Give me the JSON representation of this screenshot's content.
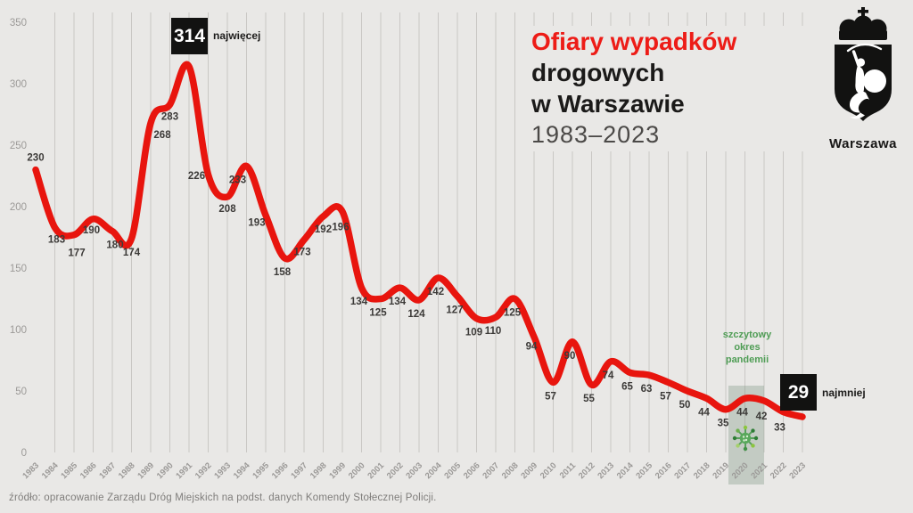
{
  "title": {
    "line1": "Ofiary wypadków",
    "line2": "drogowych",
    "line3": "w Warszawie",
    "years": "1983–2023"
  },
  "logo": {
    "caption": "Warszawa",
    "icon": "warsaw-mermaid-crest"
  },
  "annotations": {
    "max": {
      "value": "314",
      "label": "najwięcej"
    },
    "min": {
      "value": "29",
      "label": "najmniej"
    },
    "pandemic": {
      "lines": [
        "szczytowy",
        "okres",
        "pandemii"
      ],
      "icon": "virus-icon",
      "band_years": [
        2020,
        2021
      ]
    }
  },
  "source": "źródło:  opracowanie Zarządu Dróg Miejskich na podst. danych Komendy Stołecznej Policji.",
  "colors": {
    "background": "#e9e8e6",
    "grid": "#c9c7c4",
    "line_red": "#e8150e",
    "accent_red": "#ed1c17",
    "axis_text": "#9c9a98",
    "data_label": "#3c3a38",
    "black": "#121211",
    "green": "#4f9d55",
    "band": "rgba(125,150,128,0.35)",
    "virus_dark": "#2e7d36",
    "virus_light": "#8cc63f"
  },
  "chart_data": {
    "type": "line",
    "title": "Ofiary wypadków drogowych w Warszawie 1983–2023",
    "xlabel": "",
    "ylabel": "",
    "x": [
      1983,
      1984,
      1985,
      1986,
      1987,
      1988,
      1989,
      1990,
      1991,
      1992,
      1993,
      1994,
      1995,
      1996,
      1997,
      1998,
      1999,
      2000,
      2001,
      2002,
      2003,
      2004,
      2005,
      2006,
      2007,
      2008,
      2009,
      2010,
      2011,
      2012,
      2013,
      2014,
      2015,
      2016,
      2017,
      2018,
      2019,
      2020,
      2021,
      2022,
      2023
    ],
    "values": [
      230,
      183,
      177,
      190,
      180,
      174,
      268,
      283,
      314,
      226,
      208,
      233,
      193,
      158,
      173,
      192,
      196,
      134,
      125,
      134,
      124,
      142,
      127,
      109,
      110,
      125,
      94,
      57,
      90,
      55,
      74,
      65,
      63,
      57,
      50,
      44,
      35,
      44,
      42,
      33,
      29
    ],
    "ylim": [
      0,
      350
    ],
    "yticks": [
      0,
      50,
      100,
      150,
      200,
      250,
      300,
      350
    ],
    "grid": true,
    "legend": "none",
    "max_point": {
      "year": 1991,
      "value": 314
    },
    "min_point": {
      "year": 2023,
      "value": 29
    },
    "boxed_label_years": [
      1991,
      2023
    ]
  }
}
